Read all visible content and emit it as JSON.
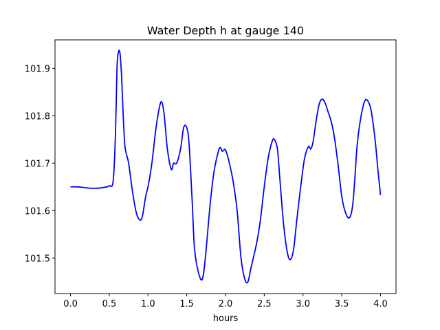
{
  "chart_data": {
    "type": "line",
    "title": "Water Depth h at gauge 140",
    "xlabel": "hours",
    "ylabel": "",
    "xlim": [
      -0.2,
      4.2
    ],
    "ylim": [
      101.425,
      101.96
    ],
    "xticks": [
      0.0,
      0.5,
      1.0,
      1.5,
      2.0,
      2.5,
      3.0,
      3.5,
      4.0
    ],
    "xtick_labels": [
      "0.0",
      "0.5",
      "1.0",
      "1.5",
      "2.0",
      "2.5",
      "3.0",
      "3.5",
      "4.0"
    ],
    "yticks": [
      101.5,
      101.6,
      101.7,
      101.8,
      101.9
    ],
    "ytick_labels": [
      "101.5",
      "101.6",
      "101.7",
      "101.8",
      "101.9"
    ],
    "grid": false,
    "series": [
      {
        "color": "#0000ff",
        "x": [
          0.0,
          0.1,
          0.2,
          0.3,
          0.4,
          0.5,
          0.55,
          0.58,
          0.6,
          0.62,
          0.64,
          0.66,
          0.68,
          0.7,
          0.72,
          0.75,
          0.8,
          0.85,
          0.9,
          0.93,
          0.97,
          1.0,
          1.05,
          1.1,
          1.15,
          1.18,
          1.21,
          1.25,
          1.3,
          1.33,
          1.37,
          1.42,
          1.46,
          1.5,
          1.53,
          1.57,
          1.6,
          1.65,
          1.7,
          1.74,
          1.8,
          1.85,
          1.9,
          1.93,
          1.96,
          2.0,
          2.05,
          2.1,
          2.15,
          2.2,
          2.25,
          2.29,
          2.33,
          2.4,
          2.45,
          2.5,
          2.55,
          2.6,
          2.63,
          2.67,
          2.7,
          2.75,
          2.8,
          2.84,
          2.88,
          2.92,
          2.97,
          3.02,
          3.07,
          3.1,
          3.13,
          3.17,
          3.21,
          3.25,
          3.29,
          3.32,
          3.36,
          3.4,
          3.45,
          3.5,
          3.55,
          3.6,
          3.64,
          3.67,
          3.7,
          3.75,
          3.8,
          3.84,
          3.88,
          3.93,
          3.97,
          4.0
        ],
        "y": [
          101.65,
          101.65,
          101.648,
          101.647,
          101.648,
          101.652,
          101.662,
          101.76,
          101.9,
          101.935,
          101.93,
          101.88,
          101.8,
          101.74,
          101.72,
          101.7,
          101.64,
          101.595,
          101.58,
          101.59,
          101.63,
          101.65,
          101.7,
          101.77,
          101.82,
          101.828,
          101.8,
          101.73,
          101.687,
          101.7,
          101.7,
          101.73,
          101.775,
          101.775,
          101.74,
          101.62,
          101.52,
          101.47,
          101.455,
          101.5,
          101.61,
          101.68,
          101.72,
          101.733,
          101.725,
          101.728,
          101.7,
          101.66,
          101.6,
          101.5,
          101.455,
          101.45,
          101.48,
          101.53,
          101.58,
          101.65,
          101.71,
          101.745,
          101.75,
          101.73,
          101.67,
          101.57,
          101.51,
          101.497,
          101.52,
          101.58,
          101.65,
          101.71,
          101.735,
          101.73,
          101.745,
          101.79,
          101.825,
          101.835,
          101.825,
          101.81,
          101.79,
          101.76,
          101.7,
          101.63,
          101.595,
          101.585,
          101.61,
          101.67,
          101.74,
          101.8,
          101.832,
          101.83,
          101.81,
          101.75,
          101.68,
          101.633
        ]
      }
    ]
  }
}
